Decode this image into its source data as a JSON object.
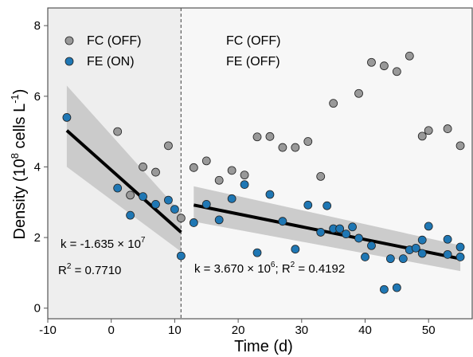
{
  "chart_data": {
    "type": "scatter",
    "xlabel": "Time (d)",
    "ylabel": {
      "main": "Density (10",
      "sup1": "8",
      "mid": " cells L",
      "sup2": "-1",
      "end": ")"
    },
    "xlim": [
      -10,
      57
    ],
    "ylim": [
      -0.3,
      8.5
    ],
    "xticks": [
      -10,
      0,
      10,
      20,
      30,
      40,
      50
    ],
    "yticks": [
      0,
      2,
      4,
      6,
      8
    ],
    "grid": false,
    "divider_x": 11,
    "regions": [
      {
        "x0": -10,
        "x1": 11,
        "color": "#eeeeee"
      },
      {
        "x0": 11,
        "x1": 57,
        "color": "#f7f7f7"
      }
    ],
    "legend": {
      "placement": "top-left",
      "entries": [
        {
          "series": "FC",
          "label": "FC",
          "state": "(OFF)"
        },
        {
          "series": "FE",
          "label": "FE",
          "state": "(ON)"
        }
      ]
    },
    "phase2_labels": {
      "line1": "FC (OFF)",
      "line2": "FE (OFF)"
    },
    "series": [
      {
        "name": "FC",
        "color": "#999999",
        "points": [
          [
            1,
            5.0
          ],
          [
            3,
            3.2
          ],
          [
            5,
            4.0
          ],
          [
            7,
            3.85
          ],
          [
            9,
            4.6
          ],
          [
            11,
            2.55
          ],
          [
            13,
            3.98
          ],
          [
            15,
            4.17
          ],
          [
            17,
            3.62
          ],
          [
            19,
            3.9
          ],
          [
            21,
            3.77
          ],
          [
            23,
            4.85
          ],
          [
            25,
            4.86
          ],
          [
            27,
            4.55
          ],
          [
            29,
            4.55
          ],
          [
            31,
            4.72
          ],
          [
            33,
            3.73
          ],
          [
            35,
            5.8
          ],
          [
            39,
            6.08
          ],
          [
            41,
            6.96
          ],
          [
            43,
            6.86
          ],
          [
            45,
            6.7
          ],
          [
            47,
            7.14
          ],
          [
            49,
            4.87
          ],
          [
            50,
            5.03
          ],
          [
            53,
            5.08
          ],
          [
            55,
            4.6
          ]
        ]
      },
      {
        "name": "FE",
        "color": "#1f77b4",
        "points": [
          [
            -7,
            5.4
          ],
          [
            1,
            3.4
          ],
          [
            3,
            2.63
          ],
          [
            5,
            3.16
          ],
          [
            7,
            2.94
          ],
          [
            9,
            3.06
          ],
          [
            10,
            2.8
          ],
          [
            11,
            1.48
          ],
          [
            13,
            2.42
          ],
          [
            15,
            2.94
          ],
          [
            17,
            2.5
          ],
          [
            19,
            3.1
          ],
          [
            21,
            3.5
          ],
          [
            23,
            1.57
          ],
          [
            25,
            3.22
          ],
          [
            27,
            2.46
          ],
          [
            29,
            1.67
          ],
          [
            31,
            2.92
          ],
          [
            33,
            2.15
          ],
          [
            34,
            2.9
          ],
          [
            35,
            2.25
          ],
          [
            36,
            2.25
          ],
          [
            37,
            2.1
          ],
          [
            38,
            2.3
          ],
          [
            39,
            1.98
          ],
          [
            40,
            1.45
          ],
          [
            41,
            1.77
          ],
          [
            43,
            0.53
          ],
          [
            44,
            1.4
          ],
          [
            45,
            0.58
          ],
          [
            46,
            1.4
          ],
          [
            47,
            1.65
          ],
          [
            48,
            1.7
          ],
          [
            49,
            1.55
          ],
          [
            49,
            1.93
          ],
          [
            50,
            2.32
          ],
          [
            53,
            1.95
          ],
          [
            53,
            1.52
          ],
          [
            55,
            1.73
          ],
          [
            55,
            1.45
          ]
        ]
      }
    ],
    "fits": [
      {
        "x0": -7,
        "x1": 11,
        "y0": 5.03,
        "y1": 2.15,
        "band_lo": [
          4.0,
          1.6
        ],
        "band_hi": [
          6.3,
          2.7
        ]
      },
      {
        "x0": 13,
        "x1": 55,
        "y0": 2.92,
        "y1": 1.4,
        "band_lo": [
          2.45,
          1.05
        ],
        "band_hi": [
          3.45,
          1.78
        ]
      }
    ],
    "annotations": [
      {
        "id": "k-phase1",
        "parts": [
          "k = -1.635 × 10",
          "7"
        ]
      },
      {
        "id": "r2-phase1",
        "parts": [
          "R",
          "2",
          " = 0.7710"
        ]
      },
      {
        "id": "phase2-fit",
        "parts": [
          "k = 3.670 ×  10",
          "6",
          "; R",
          "2",
          " = 0.4192"
        ]
      }
    ]
  }
}
